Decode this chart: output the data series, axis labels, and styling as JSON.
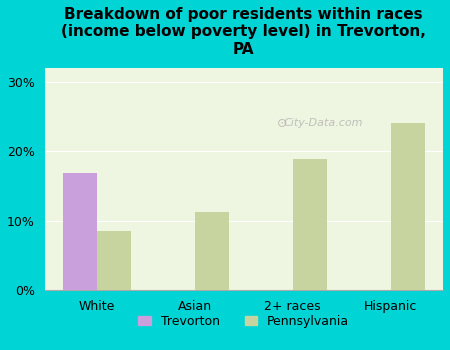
{
  "title": "Breakdown of poor residents within races\n(income below poverty level) in Trevorton,\nPA",
  "categories": [
    "White",
    "Asian",
    "2+ races",
    "Hispanic"
  ],
  "trevorton_values": [
    16.8,
    0,
    0,
    0
  ],
  "pennsylvania_values": [
    8.5,
    11.2,
    18.8,
    24.0
  ],
  "trevorton_color": "#c9a0dc",
  "pennsylvania_color": "#c8d4a0",
  "background_outer": "#00d4d4",
  "background_inner": "#eef5e0",
  "yticks": [
    0,
    10,
    20,
    30
  ],
  "ylim": [
    0,
    32
  ],
  "bar_width": 0.35,
  "title_fontsize": 11
}
